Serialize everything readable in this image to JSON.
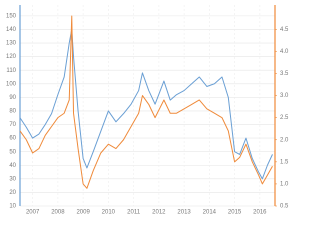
{
  "chart_data": {
    "type": "line",
    "x": [
      2006.5,
      2006.75,
      2007.0,
      2007.25,
      2007.5,
      2007.75,
      2008.0,
      2008.25,
      2008.45,
      2008.55,
      2008.62,
      2008.8,
      2009.0,
      2009.15,
      2009.4,
      2009.7,
      2010.0,
      2010.3,
      2010.6,
      2010.9,
      2011.2,
      2011.35,
      2011.6,
      2011.85,
      2012.2,
      2012.45,
      2012.7,
      2013.0,
      2013.3,
      2013.6,
      2013.9,
      2014.2,
      2014.5,
      2014.75,
      2015.0,
      2015.2,
      2015.45,
      2015.7,
      2015.95,
      2016.1,
      2016.3,
      2016.5
    ],
    "series": [
      {
        "color": "#6a9fd4",
        "values": [
          75,
          68,
          60,
          63,
          70,
          78,
          92,
          105,
          130,
          140,
          120,
          80,
          45,
          38,
          50,
          65,
          80,
          72,
          78,
          85,
          95,
          108,
          95,
          85,
          102,
          88,
          92,
          95,
          100,
          105,
          98,
          100,
          105,
          90,
          50,
          48,
          60,
          45,
          35,
          30,
          40,
          48
        ]
      },
      {
        "color": "#ef8a3a",
        "axis": "y2",
        "values": [
          2.2,
          2.0,
          1.7,
          1.8,
          2.1,
          2.3,
          2.5,
          2.6,
          2.9,
          4.8,
          2.6,
          1.8,
          1.0,
          0.9,
          1.3,
          1.7,
          1.9,
          1.8,
          2.0,
          2.3,
          2.6,
          3.0,
          2.8,
          2.5,
          2.9,
          2.6,
          2.6,
          2.7,
          2.8,
          2.9,
          2.7,
          2.6,
          2.5,
          2.2,
          1.5,
          1.6,
          1.9,
          1.5,
          1.2,
          1.0,
          1.2,
          1.4
        ]
      }
    ],
    "xlim": [
      2006.5,
      2016.6
    ],
    "xticks": [
      2007,
      2008,
      2009,
      2010,
      2011,
      2012,
      2013,
      2014,
      2015,
      2016
    ],
    "ylim": [
      10,
      158
    ],
    "yticks": [
      10,
      20,
      30,
      40,
      50,
      60,
      70,
      80,
      90,
      100,
      110,
      120,
      130,
      140,
      150
    ],
    "y2lim": [
      0.5,
      5.05
    ],
    "y2ticks": [
      0.5,
      {
        "value": 1,
        "label": "1.0"
      },
      1.5,
      {
        "value": 2,
        "label": "2.0"
      },
      2.5,
      {
        "value": 3,
        "label": "3.0"
      },
      3.5,
      {
        "value": 4,
        "label": "4.0"
      },
      4.5
    ],
    "grid": true
  }
}
